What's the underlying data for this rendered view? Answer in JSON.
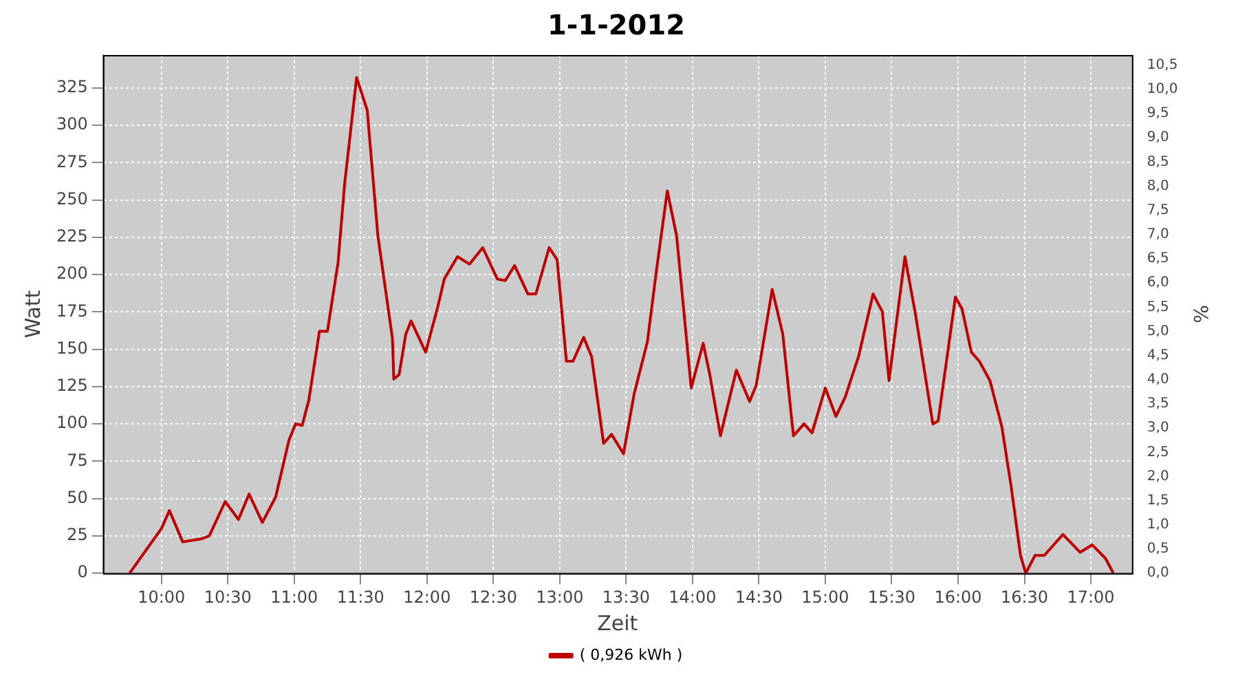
{
  "chart_data": {
    "type": "line",
    "title": "1-1-2012",
    "xlabel": "Zeit",
    "ylabel": "Watt",
    "y2label": "%",
    "xlim": [
      9.56,
      17.31
    ],
    "ylim": [
      0,
      347
    ],
    "y2lim": [
      0,
      10.71
    ],
    "xticks": [
      {
        "value": 10,
        "label": "10:00"
      },
      {
        "value": 10.5,
        "label": "10:30"
      },
      {
        "value": 11,
        "label": "11:00"
      },
      {
        "value": 11.5,
        "label": "11:30"
      },
      {
        "value": 12,
        "label": "12:00"
      },
      {
        "value": 12.5,
        "label": "12:30"
      },
      {
        "value": 13,
        "label": "13:00"
      },
      {
        "value": 13.5,
        "label": "13:30"
      },
      {
        "value": 14,
        "label": "14:00"
      },
      {
        "value": 14.5,
        "label": "14:30"
      },
      {
        "value": 15,
        "label": "15:00"
      },
      {
        "value": 15.5,
        "label": "15:30"
      },
      {
        "value": 16,
        "label": "16:00"
      },
      {
        "value": 16.5,
        "label": "16:30"
      },
      {
        "value": 17,
        "label": "17:00"
      }
    ],
    "yticks": [
      0,
      25,
      50,
      75,
      100,
      125,
      150,
      175,
      200,
      225,
      250,
      275,
      300,
      325
    ],
    "y2ticks": [
      {
        "value": 0,
        "label": "0,0"
      },
      {
        "value": 0.5,
        "label": "0,5"
      },
      {
        "value": 1,
        "label": "1,0"
      },
      {
        "value": 1.5,
        "label": "1,5"
      },
      {
        "value": 2,
        "label": "2,0"
      },
      {
        "value": 2.5,
        "label": "2,5"
      },
      {
        "value": 3,
        "label": "3,0"
      },
      {
        "value": 3.5,
        "label": "3,5"
      },
      {
        "value": 4,
        "label": "4,0"
      },
      {
        "value": 4.5,
        "label": "4,5"
      },
      {
        "value": 5,
        "label": "5,0"
      },
      {
        "value": 5.5,
        "label": "5,5"
      },
      {
        "value": 6,
        "label": "6,0"
      },
      {
        "value": 6.5,
        "label": "6,5"
      },
      {
        "value": 7,
        "label": "7,0"
      },
      {
        "value": 7.5,
        "label": "7,5"
      },
      {
        "value": 8,
        "label": "8,0"
      },
      {
        "value": 8.5,
        "label": "8,5"
      },
      {
        "value": 9,
        "label": "9,0"
      },
      {
        "value": 9.5,
        "label": "9,5"
      },
      {
        "value": 10,
        "label": "10,0"
      },
      {
        "value": 10.5,
        "label": "10,5"
      }
    ],
    "grid": true,
    "legend": "bottom",
    "marker": "none",
    "line_style": "solid",
    "series": [
      {
        "name": "( 0,926 kWh )",
        "color": "#c00000",
        "x": [
          9.76,
          10,
          10.06,
          10.16,
          10.3,
          10.36,
          10.48,
          10.58,
          10.66,
          10.76,
          10.86,
          10.96,
          11.01,
          11.06,
          11.11,
          11.19,
          11.25,
          11.33,
          11.38,
          11.47,
          11.55,
          11.63,
          11.74,
          11.75,
          11.79,
          11.84,
          11.88,
          11.99,
          12.08,
          12.13,
          12.23,
          12.32,
          12.42,
          12.53,
          12.59,
          12.66,
          12.76,
          12.82,
          12.92,
          12.98,
          13.05,
          13.1,
          13.18,
          13.24,
          13.33,
          13.39,
          13.48,
          13.56,
          13.66,
          13.73,
          13.81,
          13.88,
          13.99,
          14.08,
          14.13,
          14.21,
          14.33,
          14.43,
          14.48,
          14.6,
          14.68,
          14.76,
          14.84,
          14.9,
          15,
          15.08,
          15.15,
          15.25,
          15.36,
          15.43,
          15.48,
          15.53,
          15.6,
          15.68,
          15.81,
          15.85,
          15.98,
          16.03,
          16.1,
          16.16,
          16.24,
          16.33,
          16.4,
          16.47,
          16.51,
          16.58,
          16.65,
          16.79,
          16.92,
          17.01,
          17.11,
          17.17
        ],
        "values": [
          0,
          30,
          42,
          21,
          23,
          25,
          48,
          36,
          53,
          34,
          51,
          89,
          100,
          99,
          116,
          162,
          162,
          208,
          261,
          332,
          310,
          226,
          157,
          130,
          133,
          160,
          169,
          148,
          178,
          197,
          212,
          207,
          218,
          197,
          196,
          206,
          187,
          187,
          218,
          210,
          142,
          142,
          158,
          145,
          87,
          93,
          80,
          120,
          155,
          204,
          256,
          226,
          124,
          154,
          133,
          92,
          136,
          115,
          126,
          190,
          160,
          92,
          100,
          94,
          124,
          105,
          118,
          145,
          187,
          175,
          129,
          164,
          212,
          173,
          100,
          102,
          185,
          177,
          148,
          142,
          129,
          98,
          58,
          12,
          0,
          12,
          12,
          26,
          14,
          19,
          10,
          0
        ]
      }
    ]
  }
}
